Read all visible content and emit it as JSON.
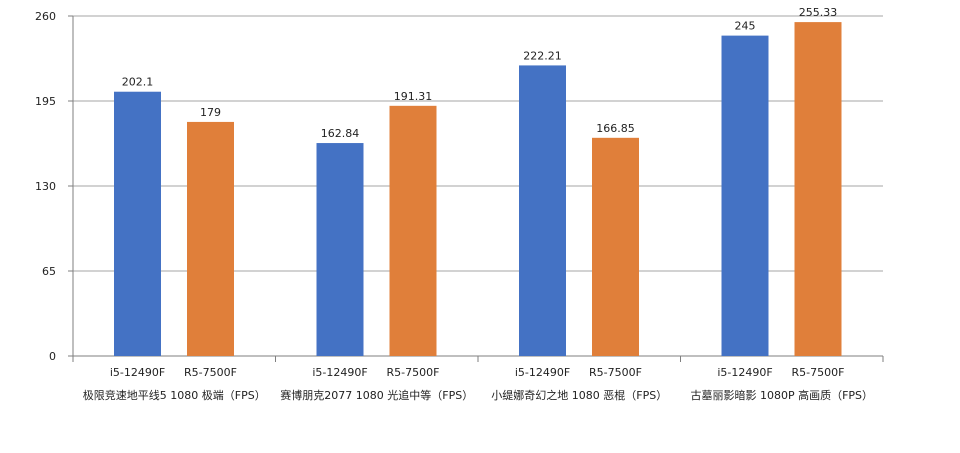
{
  "chart_data": {
    "type": "bar",
    "title": "",
    "xlabel": "",
    "ylabel": "",
    "ylim": [
      0,
      260
    ],
    "yticks": [
      0,
      65,
      130,
      195,
      260
    ],
    "grid": true,
    "legend": "none",
    "groups": [
      {
        "label": "极限竞速地平线5 1080 极端（FPS）",
        "bars": [
          {
            "name": "i5-12490F",
            "value": 202.1,
            "value_label": "202.1",
            "color": "#4472c4"
          },
          {
            "name": "R5-7500F",
            "value": 179,
            "value_label": "179",
            "color": "#e07f3a"
          }
        ]
      },
      {
        "label": "赛博朋克2077 1080 光追中等（FPS）",
        "bars": [
          {
            "name": "i5-12490F",
            "value": 162.84,
            "value_label": "162.84",
            "color": "#4472c4"
          },
          {
            "name": "R5-7500F",
            "value": 191.31,
            "value_label": "191.31",
            "color": "#e07f3a"
          }
        ]
      },
      {
        "label": "小缇娜奇幻之地 1080 恶棍（FPS）",
        "bars": [
          {
            "name": "i5-12490F",
            "value": 222.21,
            "value_label": "222.21",
            "color": "#4472c4"
          },
          {
            "name": "R5-7500F",
            "value": 166.85,
            "value_label": "166.85",
            "color": "#e07f3a"
          }
        ]
      },
      {
        "label": "古墓丽影暗影 1080P 高画质（FPS）",
        "bars": [
          {
            "name": "i5-12490F",
            "value": 245,
            "value_label": "245",
            "color": "#4472c4"
          },
          {
            "name": "R5-7500F",
            "value": 255.33,
            "value_label": "255.33",
            "color": "#e07f3a"
          }
        ]
      }
    ],
    "colors": {
      "grid": "#a6a6a6",
      "axis": "#7f7f7f"
    }
  }
}
